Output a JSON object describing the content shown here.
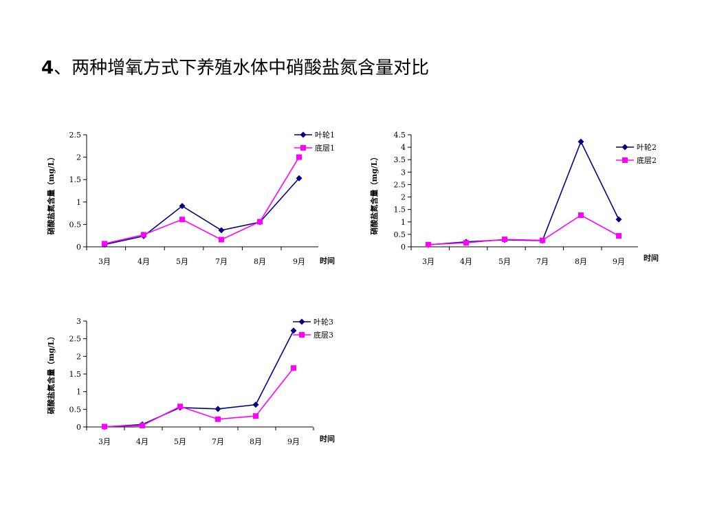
{
  "title": {
    "num": "4",
    "text": "、两种增氧方式下养殖水体中硝酸盐氮含量对比"
  },
  "colors": {
    "series1": "#000080",
    "series2": "#ff00ff"
  },
  "chart_data": [
    {
      "type": "line",
      "categories": [
        "3月",
        "4月",
        "5月",
        "7月",
        "8月",
        "9月"
      ],
      "ylabel": "硝酸盐氮含量（mg/L）",
      "xlabel": "时间",
      "ylim": [
        0,
        2.5
      ],
      "yticks": [
        "0",
        "0.5",
        "1",
        "1.5",
        "2",
        "2.5"
      ],
      "legend": "top-right",
      "series": [
        {
          "name": "叶轮1",
          "values": [
            0.05,
            0.24,
            0.91,
            0.37,
            0.55,
            1.53
          ]
        },
        {
          "name": "底层1",
          "values": [
            0.07,
            0.27,
            0.61,
            0.16,
            0.56,
            2.0
          ]
        }
      ]
    },
    {
      "type": "line",
      "categories": [
        "3月",
        "4月",
        "5月",
        "7月",
        "8月",
        "9月"
      ],
      "ylabel": "硝酸盐氮含量（mg/L）",
      "xlabel": "时间",
      "ylim": [
        0,
        4.5
      ],
      "yticks": [
        "0",
        "0.5",
        "1",
        "1.5",
        "2",
        "2.5",
        "3",
        "3.5",
        "4",
        "4.5"
      ],
      "legend": "right",
      "series": [
        {
          "name": "叶轮2",
          "values": [
            0.08,
            0.2,
            0.28,
            0.25,
            4.22,
            1.1
          ]
        },
        {
          "name": "底层2",
          "values": [
            0.09,
            0.16,
            0.3,
            0.26,
            1.27,
            0.44
          ]
        }
      ]
    },
    {
      "type": "line",
      "categories": [
        "3月",
        "4月",
        "5月",
        "7月",
        "8月",
        "9月"
      ],
      "ylabel": "硝酸盐氮含量（mg/L）",
      "xlabel": "时间",
      "ylim": [
        0,
        3
      ],
      "yticks": [
        "0",
        "0.5",
        "1",
        "1.5",
        "2",
        "2.5",
        "3"
      ],
      "legend": "top-right",
      "series": [
        {
          "name": "叶轮3",
          "values": [
            0.0,
            0.07,
            0.55,
            0.51,
            0.63,
            2.73
          ]
        },
        {
          "name": "底层3",
          "values": [
            0.01,
            0.04,
            0.58,
            0.22,
            0.31,
            1.67
          ]
        }
      ]
    }
  ]
}
